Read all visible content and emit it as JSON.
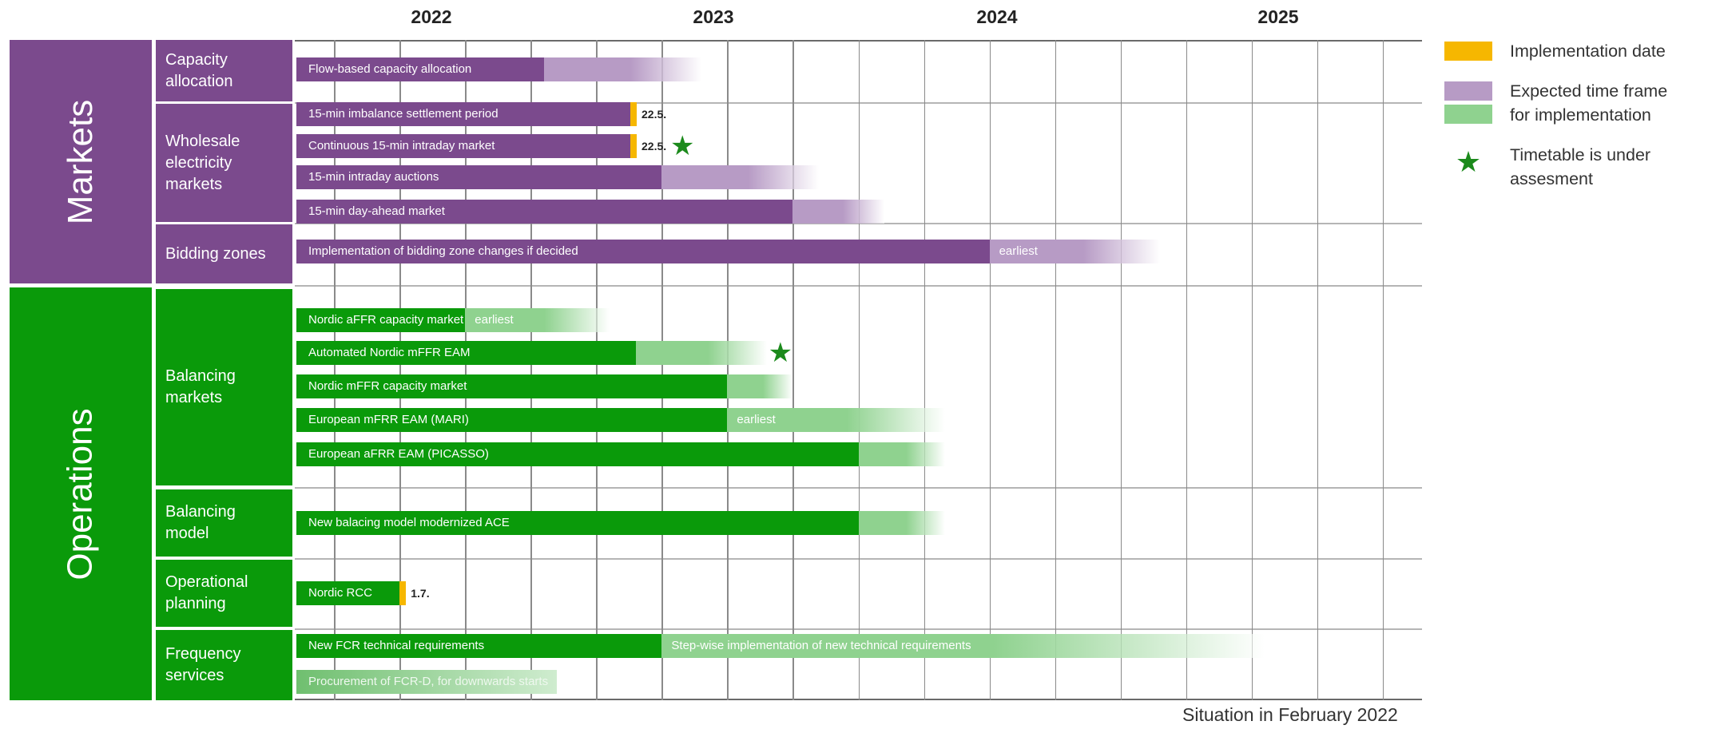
{
  "years": [
    "2022",
    "2023",
    "2024",
    "2025"
  ],
  "domains": [
    {
      "label": "Markets",
      "color": "#7b4a8d"
    },
    {
      "label": "Operations",
      "color": "#0a9a0a"
    }
  ],
  "categories": [
    {
      "label": "Capacity\nallocation",
      "domain": "Markets"
    },
    {
      "label": "Wholesale\nelectricity\nmarkets",
      "domain": "Markets"
    },
    {
      "label": "Bidding zones",
      "domain": "Markets"
    },
    {
      "label": "Balancing\nmarkets",
      "domain": "Operations"
    },
    {
      "label": "Balancing\nmodel",
      "domain": "Operations"
    },
    {
      "label": "Operational\nplanning",
      "domain": "Operations"
    },
    {
      "label": "Frequency\nservices",
      "domain": "Operations"
    }
  ],
  "chart_data": {
    "type": "timeline",
    "title": "",
    "x_axis": {
      "unit": "year",
      "range": [
        2021.6,
        2025.9
      ],
      "labels": [
        "2022",
        "2023",
        "2024",
        "2025"
      ]
    },
    "colors": {
      "markets": "#7b4a8d",
      "markets_fade": "#b79bc5",
      "operations": "#0a9a0a",
      "operations_fade": "#8fd28f",
      "implementation": "#f6b700",
      "star": "#1c8a1c"
    },
    "tasks": [
      {
        "label": "Flow-based capacity allocation",
        "category": "Capacity allocation",
        "domain": "Markets",
        "solid_end": 2022.55,
        "fade_end": 2023.15
      },
      {
        "label": "15-min imbalance settlement period",
        "category": "Wholesale electricity markets",
        "domain": "Markets",
        "solid_end": 2022.88,
        "implementation_date": "22.5."
      },
      {
        "label": "Continuous 15-min intraday market",
        "category": "Wholesale electricity markets",
        "domain": "Markets",
        "solid_end": 2022.88,
        "implementation_date": "22.5.",
        "under_assessment": true
      },
      {
        "label": "15-min intraday auctions",
        "category": "Wholesale electricity markets",
        "domain": "Markets",
        "solid_end": 2023.0,
        "fade_end": 2023.6
      },
      {
        "label": "15-min day-ahead market",
        "category": "Wholesale electricity markets",
        "domain": "Markets",
        "solid_end": 2023.5,
        "fade_end": 2023.85
      },
      {
        "label": "Implementation of bidding zone changes if decided",
        "category": "Bidding zones",
        "domain": "Markets",
        "solid_end": 2024.25,
        "fade_end": 2024.9,
        "fade_label": "earliest"
      },
      {
        "label": "Nordic aFFR capacity market",
        "category": "Balancing markets",
        "domain": "Operations",
        "solid_end": 2022.25,
        "fade_end": 2022.8,
        "fade_label": "earliest"
      },
      {
        "label": "Automated Nordic mFFR EAM",
        "category": "Balancing markets",
        "domain": "Operations",
        "solid_end": 2022.9,
        "fade_end": 2023.4,
        "under_assessment": true
      },
      {
        "label": "Nordic mFFR capacity market",
        "category": "Balancing markets",
        "domain": "Operations",
        "solid_end": 2023.25,
        "fade_end": 2023.5
      },
      {
        "label": "European mFRR EAM (MARI)",
        "category": "Balancing markets",
        "domain": "Operations",
        "solid_end": 2023.25,
        "fade_end": 2024.08,
        "fade_label": "earliest"
      },
      {
        "label": "European aFRR EAM (PICASSO)",
        "category": "Balancing markets",
        "domain": "Operations",
        "solid_end": 2023.75,
        "fade_end": 2024.08
      },
      {
        "label": "New balacing model modernized ACE",
        "category": "Balancing model",
        "domain": "Operations",
        "solid_end": 2023.75,
        "fade_end": 2024.08
      },
      {
        "label": "Nordic RCC",
        "category": "Operational planning",
        "domain": "Operations",
        "solid_end": 2022.0,
        "implementation_date": "1.7."
      },
      {
        "label": "New FCR technical requirements",
        "category": "Frequency services",
        "domain": "Operations",
        "solid_end": 2023.0,
        "fade_end": 2025.3,
        "fade_label": "Step-wise implementation of new technical requirements"
      },
      {
        "label": "Procurement of FCR-D, for downwards starts",
        "category": "Frequency services",
        "domain": "Operations",
        "solid_end": 2021.6,
        "fade_end": 2022.6,
        "label_faded": true
      }
    ]
  },
  "legend": [
    {
      "label": "Implementation date",
      "kind": "implementation"
    },
    {
      "label": "Expected time frame\nfor implementation",
      "kind": "expected"
    },
    {
      "label": "Timetable is under\nassesment",
      "kind": "star"
    }
  ],
  "footer": "Situation in February 2022"
}
